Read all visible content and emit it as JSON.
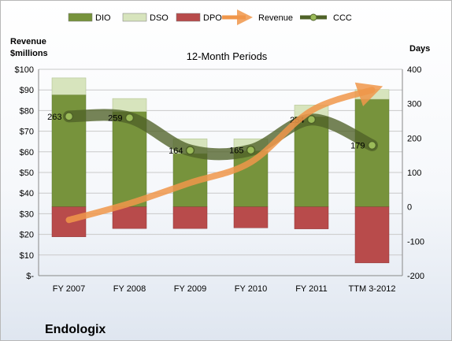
{
  "chart_data": {
    "type": "bar",
    "title": "12-Month Periods",
    "company": "Endologix",
    "left_axis_title": [
      "Revenue",
      "$millions"
    ],
    "right_axis_title": "Days",
    "categories": [
      "FY 2007",
      "FY 2008",
      "FY 2009",
      "FY 2010",
      "FY 2011",
      "TTM 3-2012"
    ],
    "left_axis": {
      "min": 0,
      "max": 100,
      "step": 10,
      "tick_labels": [
        "$-",
        "$10",
        "$20",
        "$30",
        "$40",
        "$50",
        "$60",
        "$70",
        "$80",
        "$90",
        "$100"
      ]
    },
    "right_axis": {
      "min": -200,
      "max": 400,
      "step": 100,
      "tick_labels": [
        "-200",
        "-100",
        "0",
        "100",
        "200",
        "300",
        "400"
      ]
    },
    "series": [
      {
        "name": "DIO",
        "kind": "bar",
        "axis": "right",
        "color": "#77933c",
        "values": [
          326,
          277,
          155,
          163,
          262,
          313
        ]
      },
      {
        "name": "DSO",
        "kind": "bar",
        "axis": "right",
        "color": "#d7e4bd",
        "values": [
          49,
          38,
          43,
          35,
          34,
          28
        ]
      },
      {
        "name": "DPO",
        "kind": "bar",
        "axis": "right",
        "color": "#b84b4b",
        "values": [
          -87,
          -63,
          -63,
          -61,
          -64,
          -163
        ]
      },
      {
        "name": "Revenue",
        "kind": "line",
        "axis": "left",
        "color": "#f0964a",
        "values": [
          27,
          35,
          45,
          55,
          80,
          90
        ]
      },
      {
        "name": "CCC",
        "kind": "line",
        "axis": "right",
        "color": "#4f6228",
        "values": [
          263,
          259,
          164,
          165,
          254,
          179
        ],
        "labels": [
          "263",
          "259",
          "164",
          "165",
          "254",
          "179"
        ]
      }
    ],
    "legend": {
      "position": "top",
      "entries": [
        "DIO",
        "DSO",
        "DPO",
        "Revenue",
        "CCC"
      ]
    },
    "grid": true
  }
}
